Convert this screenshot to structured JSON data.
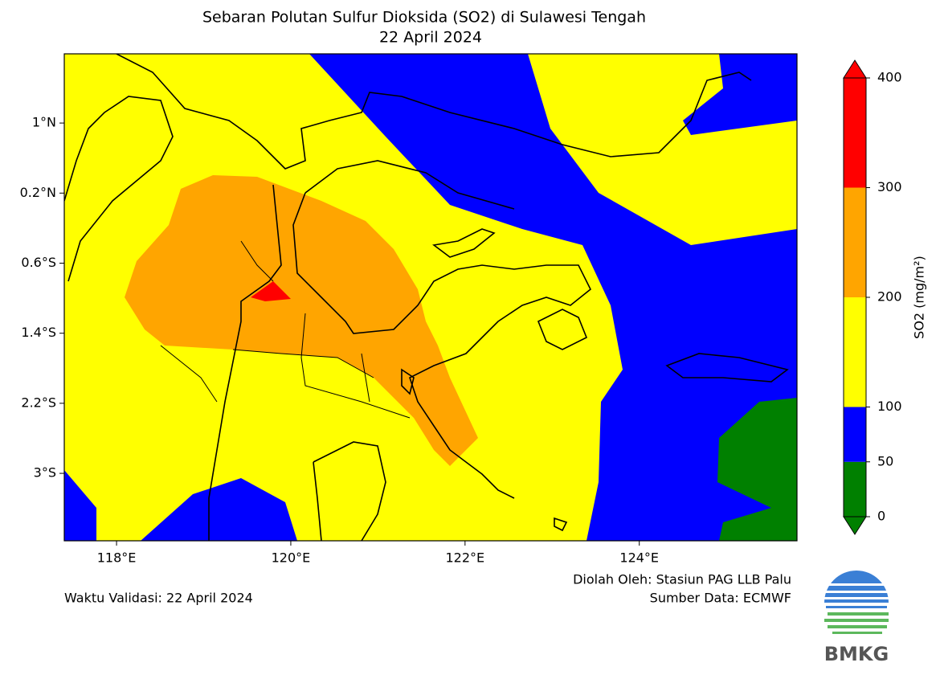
{
  "map": {
    "title": "Sebaran Polutan Sulfur Dioksida (SO2) di Sulawesi Tengah",
    "subtitle": "22 April 2024",
    "xlim": [
      117.4,
      125.81
    ],
    "ylim": [
      -3.77,
      1.79
    ],
    "lon_ticks": [
      {
        "value": 118,
        "label": "118°E"
      },
      {
        "value": 120,
        "label": "120°E"
      },
      {
        "value": 122,
        "label": "122°E"
      },
      {
        "value": 124,
        "label": "124°E"
      }
    ],
    "lat_ticks": [
      {
        "value": 1,
        "label": "1°N"
      },
      {
        "value": 0.2,
        "label": "0.2°N"
      },
      {
        "value": -0.6,
        "label": "0.6°S"
      },
      {
        "value": -1.4,
        "label": "1.4°S"
      },
      {
        "value": -2.2,
        "label": "2.2°S"
      },
      {
        "value": -3,
        "label": "3°S"
      }
    ],
    "colorbar": {
      "label": "SO2 (mg/m²)",
      "ticks": [
        0,
        50,
        100,
        200,
        300,
        400
      ],
      "colors": [
        "#008000",
        "#0000ff",
        "#ffff00",
        "#ffa500",
        "#ff0000"
      ]
    },
    "credit": "Diolah Oleh: Stasiun PAG LLB Palu",
    "source": "Sumber Data: ECMWF",
    "validity": "Waktu Validasi: 22 April 2024",
    "logo": "BMKG"
  }
}
